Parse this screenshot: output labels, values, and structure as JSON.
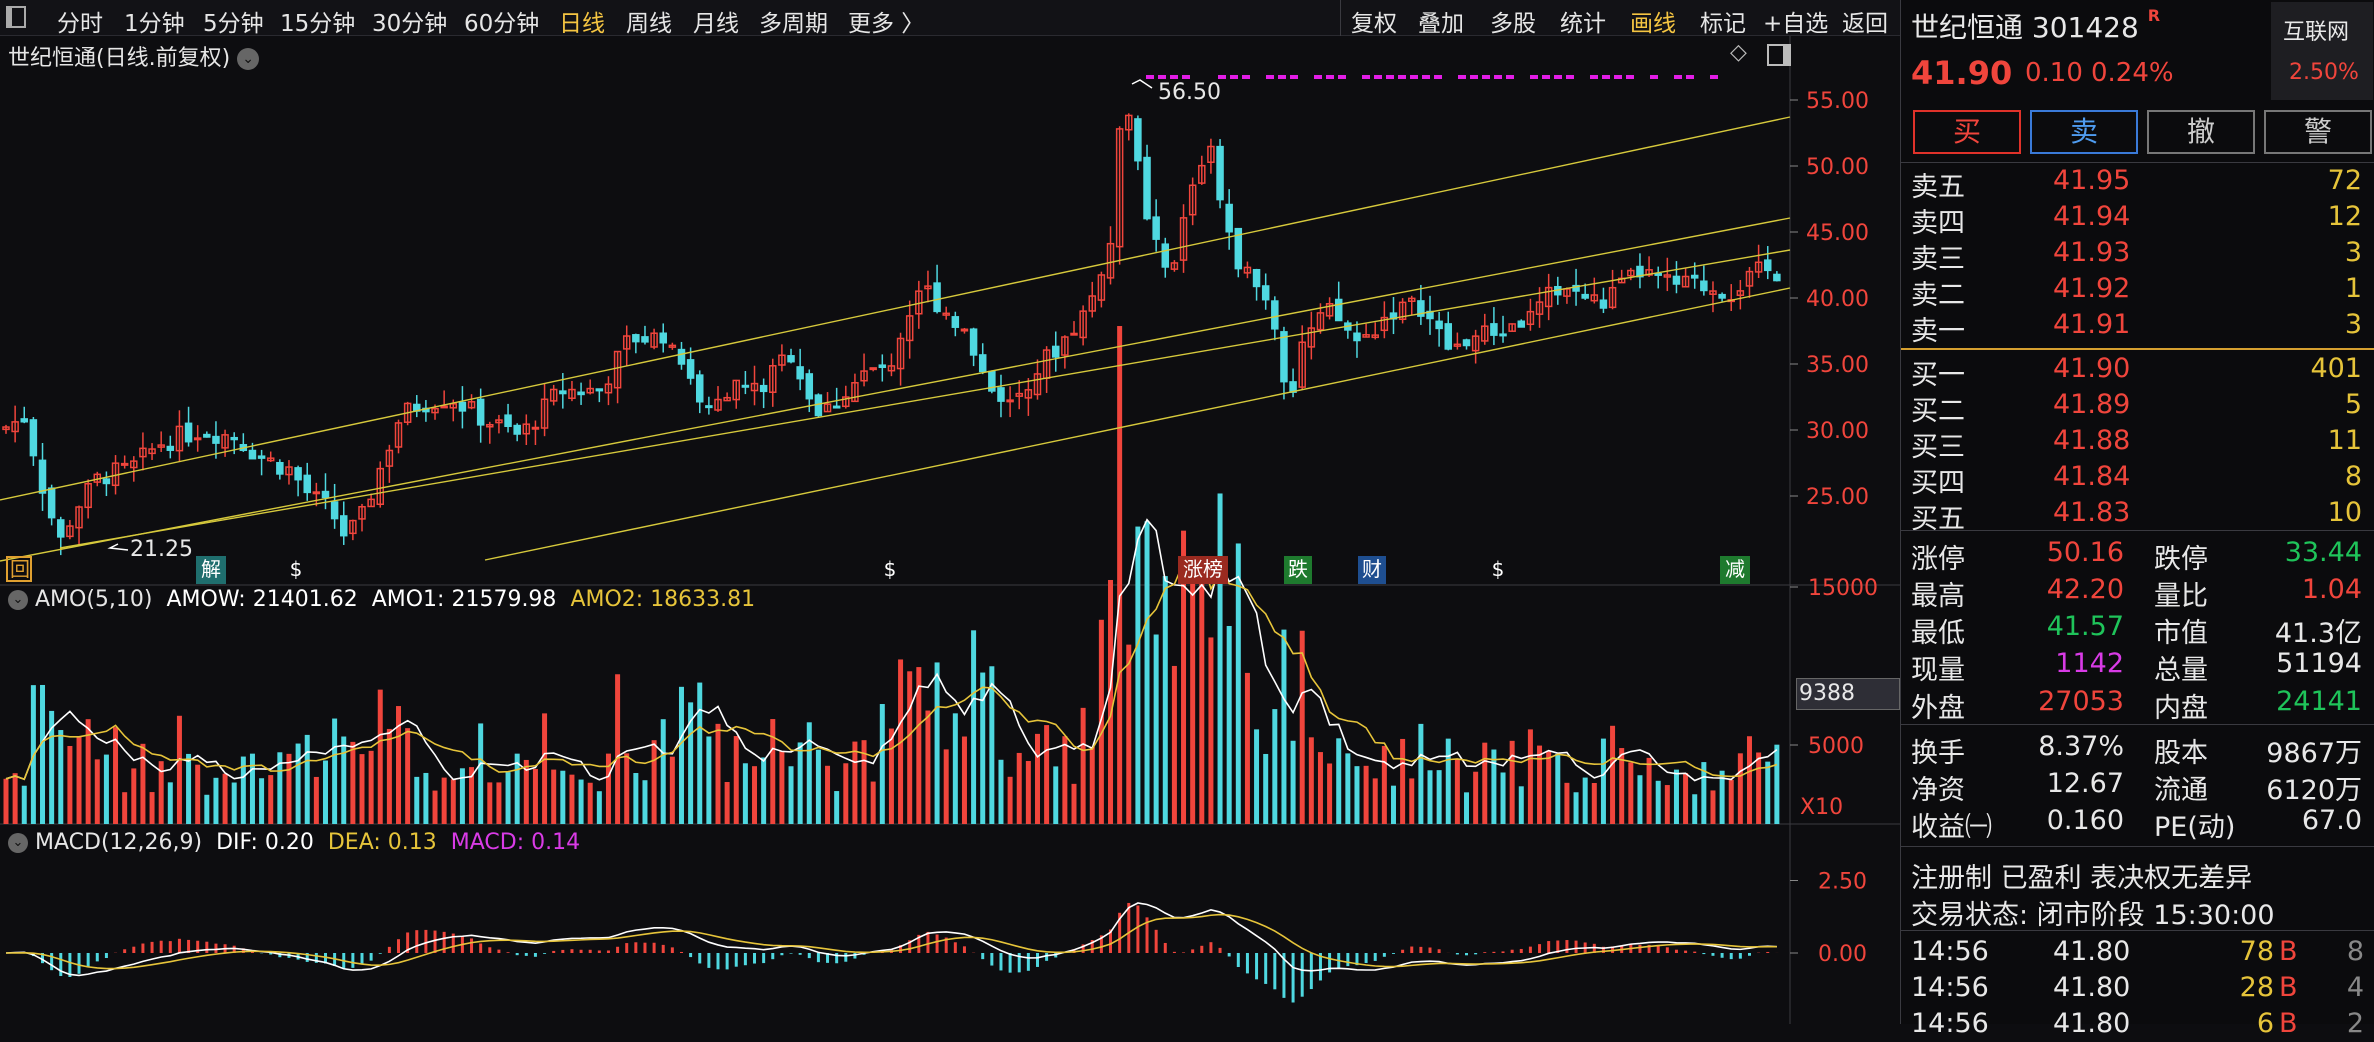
{
  "toolbar": {
    "periods": [
      "分时",
      "1分钟",
      "5分钟",
      "15分钟",
      "30分钟",
      "60分钟",
      "日线",
      "周线",
      "月线",
      "多周期",
      "更多 〉"
    ],
    "active": "日线",
    "actions": [
      "复权",
      "叠加",
      "多股",
      "统计",
      "画线",
      "标记",
      "+自选",
      "返回"
    ]
  },
  "main_chart": {
    "title": "世纪恒通(日线.前复权)",
    "high_label": "56.50",
    "low_label": "21.25",
    "yticks": [
      "55.00",
      "50.00",
      "45.00",
      "40.00",
      "35.00",
      "30.00",
      "25.00"
    ],
    "event_markers": [
      "回",
      "解",
      "$",
      "$",
      "涨榜",
      "跌",
      "财",
      "$",
      "减"
    ]
  },
  "amo": {
    "name": "AMO(5,10)",
    "amow": "AMOW: 21401.62",
    "amo1": "AMO1: 21579.98",
    "amo2": "AMO2: 18633.81",
    "yticks": [
      "15000",
      "5000"
    ],
    "cursor_value": "9388",
    "scale": "X10"
  },
  "macd": {
    "name": "MACD(12,26,9)",
    "dif": "DIF: 0.20",
    "dea": "DEA: 0.13",
    "macd": "MACD: 0.14",
    "yticks": [
      "2.50",
      "0.00"
    ]
  },
  "quote": {
    "name": "世纪恒通",
    "code": "301428",
    "tag": "R",
    "price": "41.90",
    "change": "0.10",
    "pct": "0.24%",
    "sector": "互联网",
    "sector_pct": "2.50%"
  },
  "trade_buttons": [
    "买",
    "卖",
    "撤",
    "警"
  ],
  "asks": [
    {
      "label": "卖五",
      "price": "41.95",
      "vol": "72"
    },
    {
      "label": "卖四",
      "price": "41.94",
      "vol": "12"
    },
    {
      "label": "卖三",
      "price": "41.93",
      "vol": "3"
    },
    {
      "label": "卖二",
      "price": "41.92",
      "vol": "1"
    },
    {
      "label": "卖一",
      "price": "41.91",
      "vol": "3"
    }
  ],
  "bids": [
    {
      "label": "买一",
      "price": "41.90",
      "vol": "401"
    },
    {
      "label": "买二",
      "price": "41.89",
      "vol": "5"
    },
    {
      "label": "买三",
      "price": "41.88",
      "vol": "11"
    },
    {
      "label": "买四",
      "price": "41.84",
      "vol": "8"
    },
    {
      "label": "买五",
      "price": "41.83",
      "vol": "10"
    }
  ],
  "stats": {
    "zhangting": "涨停",
    "zhangting_v": "50.16",
    "dieting": "跌停",
    "dieting_v": "33.44",
    "zuigao": "最高",
    "zuigao_v": "42.20",
    "liangbi": "量比",
    "liangbi_v": "1.04",
    "zuidi": "最低",
    "zuidi_v": "41.57",
    "shizhi": "市值",
    "shizhi_v": "41.3亿",
    "xianliang": "现量",
    "xianliang_v": "1142",
    "zongliang": "总量",
    "zongliang_v": "51194",
    "waipan": "外盘",
    "waipan_v": "27053",
    "neipan": "内盘",
    "neipan_v": "24141"
  },
  "fund": {
    "huanshou": "换手",
    "huanshou_v": "8.37%",
    "guben": "股本",
    "guben_v": "9867万",
    "jingzi": "净资",
    "jingzi_v": "12.67",
    "liutong": "流通",
    "liutong_v": "6120万",
    "shouyi": "收益㈠",
    "shouyi_v": "0.160",
    "pe": "PE(动)",
    "pe_v": "67.0"
  },
  "info": {
    "line1": "注册制 已盈利 表决权无差异",
    "line2": "交易状态: 闭市阶段 15:30:00"
  },
  "ticks": [
    {
      "time": "14:56",
      "price": "41.80",
      "vol": "78",
      "side": "B",
      "n": "8"
    },
    {
      "time": "14:56",
      "price": "41.80",
      "vol": "28",
      "side": "B",
      "n": "4"
    },
    {
      "time": "14:56",
      "price": "41.80",
      "vol": "6",
      "side": "B",
      "n": "2"
    }
  ],
  "colors": {
    "up": "#f0453c",
    "down": "#4fd8e0",
    "ma_white": "#ffffff",
    "ma_yellow": "#e6c43a",
    "channel": "#d6c93c",
    "magenta": "#e21ee6"
  }
}
